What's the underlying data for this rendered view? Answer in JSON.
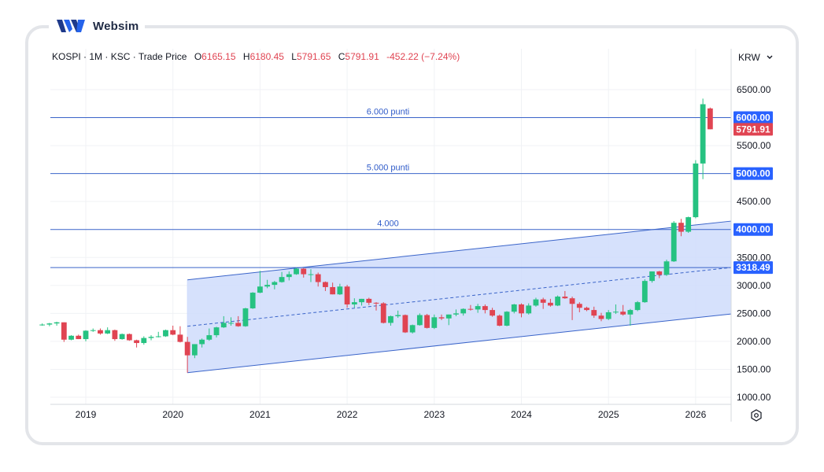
{
  "brand": {
    "name": "Websim",
    "icon": "websim-logo-icon"
  },
  "legend": {
    "symbol": "KOSPI",
    "interval": "1M",
    "exchange": "KSC",
    "price_type": "Trade Price",
    "o_label": "O",
    "o_value": "6165.15",
    "h_label": "H",
    "h_value": "6180.45",
    "l_label": "L",
    "l_value": "5791.65",
    "c_label": "C",
    "c_value": "5791.91",
    "change": "-452.22",
    "change_pct": "(−7.24%)"
  },
  "currency": {
    "label": "KRW",
    "icon": "chevron-down-icon"
  },
  "colors": {
    "up": "#26c281",
    "down": "#e04452",
    "line": "#3a64c9",
    "channel_fill": "#cfdcfb",
    "badge": "#2962ff"
  },
  "chart_data": {
    "type": "candlestick",
    "x_ticks": [
      "2019",
      "2020",
      "2021",
      "2022",
      "2023",
      "2024",
      "2025",
      "2026"
    ],
    "y_ticks": [
      "1000.00",
      "1500.00",
      "2000.00",
      "2500.00",
      "3000.00",
      "3500.00",
      "4500.00",
      "5500.00",
      "6500.00"
    ],
    "ylim": [
      950,
      6650
    ],
    "horizontal_lines": [
      {
        "value": 6000,
        "label": "6.000 punti",
        "badge": "6000.00"
      },
      {
        "value": 5000,
        "label": "5.000 punti",
        "badge": "5000.00"
      },
      {
        "value": 4000,
        "label": "4.000",
        "badge": "4000.00"
      },
      {
        "value": 3318.49,
        "label": "",
        "badge": "3318.49"
      }
    ],
    "last_price_badge": {
      "value": 5791.91,
      "text": "5791.91"
    },
    "channel": {
      "start": "2020-03",
      "end": "2026-06",
      "upper": [
        3100,
        4150
      ],
      "middle": [
        2270,
        3320
      ],
      "lower": [
        1440,
        2490
      ]
    },
    "candles": [
      [
        "2018-07",
        2300,
        2320,
        2280,
        2300
      ],
      [
        "2018-08",
        2300,
        2330,
        2270,
        2320
      ],
      [
        "2018-09",
        2320,
        2350,
        2280,
        2340
      ],
      [
        "2018-10",
        2340,
        2340,
        1990,
        2030
      ],
      [
        "2018-11",
        2030,
        2110,
        2020,
        2100
      ],
      [
        "2018-12",
        2100,
        2120,
        2040,
        2040
      ],
      [
        "2019-01",
        2040,
        2200,
        2000,
        2190
      ],
      [
        "2019-02",
        2190,
        2230,
        2170,
        2200
      ],
      [
        "2019-03",
        2200,
        2230,
        2120,
        2140
      ],
      [
        "2019-04",
        2140,
        2250,
        2130,
        2200
      ],
      [
        "2019-05",
        2200,
        2210,
        2010,
        2040
      ],
      [
        "2019-06",
        2040,
        2140,
        2030,
        2130
      ],
      [
        "2019-07",
        2130,
        2140,
        2010,
        2020
      ],
      [
        "2019-08",
        2020,
        2030,
        1890,
        1970
      ],
      [
        "2019-09",
        1970,
        2090,
        1940,
        2060
      ],
      [
        "2019-10",
        2060,
        2110,
        2020,
        2080
      ],
      [
        "2019-11",
        2080,
        2170,
        2070,
        2090
      ],
      [
        "2019-12",
        2090,
        2210,
        2080,
        2200
      ],
      [
        "2020-01",
        2200,
        2280,
        2110,
        2120
      ],
      [
        "2020-02",
        2120,
        2270,
        1980,
        1990
      ],
      [
        "2020-03",
        1990,
        2080,
        1440,
        1750
      ],
      [
        "2020-04",
        1750,
        1950,
        1700,
        1950
      ],
      [
        "2020-05",
        1950,
        2050,
        1890,
        2030
      ],
      [
        "2020-06",
        2030,
        2230,
        2010,
        2110
      ],
      [
        "2020-07",
        2110,
        2260,
        2070,
        2250
      ],
      [
        "2020-08",
        2250,
        2450,
        2240,
        2330
      ],
      [
        "2020-09",
        2330,
        2430,
        2280,
        2330
      ],
      [
        "2020-10",
        2330,
        2450,
        2260,
        2270
      ],
      [
        "2020-11",
        2270,
        2600,
        2260,
        2590
      ],
      [
        "2020-12",
        2590,
        2880,
        2580,
        2870
      ],
      [
        "2021-01",
        2870,
        3260,
        2860,
        2980
      ],
      [
        "2021-02",
        2980,
        3100,
        2950,
        3010
      ],
      [
        "2021-03",
        3010,
        3080,
        2930,
        3060
      ],
      [
        "2021-04",
        3060,
        3240,
        3050,
        3150
      ],
      [
        "2021-05",
        3150,
        3250,
        3090,
        3200
      ],
      [
        "2021-06",
        3200,
        3320,
        3190,
        3300
      ],
      [
        "2021-07",
        3300,
        3310,
        3140,
        3200
      ],
      [
        "2021-08",
        3200,
        3290,
        3060,
        3200
      ],
      [
        "2021-09",
        3200,
        3230,
        2980,
        3060
      ],
      [
        "2021-10",
        3060,
        3070,
        2900,
        2970
      ],
      [
        "2021-11",
        2970,
        3050,
        2840,
        2840
      ],
      [
        "2021-12",
        2840,
        3030,
        2830,
        2980
      ],
      [
        "2022-01",
        2980,
        3010,
        2600,
        2660
      ],
      [
        "2022-02",
        2660,
        2770,
        2600,
        2700
      ],
      [
        "2022-03",
        2700,
        2760,
        2640,
        2760
      ],
      [
        "2022-04",
        2760,
        2780,
        2650,
        2690
      ],
      [
        "2022-05",
        2690,
        2700,
        2550,
        2680
      ],
      [
        "2022-06",
        2680,
        2700,
        2320,
        2330
      ],
      [
        "2022-07",
        2330,
        2460,
        2280,
        2450
      ],
      [
        "2022-08",
        2450,
        2550,
        2420,
        2470
      ],
      [
        "2022-09",
        2470,
        2480,
        2150,
        2160
      ],
      [
        "2022-10",
        2160,
        2300,
        2140,
        2290
      ],
      [
        "2022-11",
        2290,
        2500,
        2280,
        2470
      ],
      [
        "2022-12",
        2470,
        2490,
        2230,
        2240
      ],
      [
        "2023-01",
        2240,
        2480,
        2220,
        2430
      ],
      [
        "2023-02",
        2430,
        2480,
        2380,
        2410
      ],
      [
        "2023-03",
        2410,
        2480,
        2290,
        2480
      ],
      [
        "2023-04",
        2480,
        2570,
        2450,
        2500
      ],
      [
        "2023-05",
        2500,
        2590,
        2460,
        2580
      ],
      [
        "2023-06",
        2580,
        2650,
        2550,
        2570
      ],
      [
        "2023-07",
        2570,
        2670,
        2510,
        2630
      ],
      [
        "2023-08",
        2630,
        2660,
        2500,
        2560
      ],
      [
        "2023-09",
        2560,
        2600,
        2440,
        2460
      ],
      [
        "2023-10",
        2460,
        2480,
        2270,
        2280
      ],
      [
        "2023-11",
        2280,
        2540,
        2270,
        2530
      ],
      [
        "2023-12",
        2530,
        2670,
        2500,
        2660
      ],
      [
        "2024-01",
        2660,
        2680,
        2430,
        2500
      ],
      [
        "2024-02",
        2500,
        2680,
        2480,
        2640
      ],
      [
        "2024-03",
        2640,
        2780,
        2620,
        2750
      ],
      [
        "2024-04",
        2750,
        2780,
        2580,
        2690
      ],
      [
        "2024-05",
        2690,
        2760,
        2620,
        2640
      ],
      [
        "2024-06",
        2640,
        2820,
        2630,
        2800
      ],
      [
        "2024-07",
        2800,
        2900,
        2760,
        2770
      ],
      [
        "2024-08",
        2770,
        2800,
        2380,
        2670
      ],
      [
        "2024-09",
        2670,
        2700,
        2520,
        2600
      ],
      [
        "2024-10",
        2600,
        2620,
        2540,
        2560
      ],
      [
        "2024-11",
        2560,
        2620,
        2420,
        2460
      ],
      [
        "2024-12",
        2460,
        2510,
        2360,
        2400
      ],
      [
        "2025-01",
        2400,
        2560,
        2380,
        2520
      ],
      [
        "2025-02",
        2520,
        2660,
        2490,
        2530
      ],
      [
        "2025-03",
        2530,
        2650,
        2460,
        2480
      ],
      [
        "2025-04",
        2480,
        2580,
        2280,
        2560
      ],
      [
        "2025-05",
        2560,
        2720,
        2540,
        2700
      ],
      [
        "2025-06",
        2700,
        3110,
        2690,
        3080
      ],
      [
        "2025-07",
        3080,
        3250,
        3050,
        3250
      ],
      [
        "2025-08",
        3250,
        3260,
        3130,
        3190
      ],
      [
        "2025-09",
        3190,
        3460,
        3170,
        3430
      ],
      [
        "2025-10",
        3430,
        4150,
        3420,
        4120
      ],
      [
        "2025-11",
        4120,
        4190,
        3880,
        3960
      ],
      [
        "2025-12",
        3960,
        4230,
        3940,
        4220
      ],
      [
        "2026-01",
        4220,
        5240,
        4200,
        5180
      ],
      [
        "2026-02",
        5180,
        6340,
        4900,
        6240
      ],
      [
        "2026-03",
        6165.15,
        6180.45,
        5791.65,
        5791.91
      ]
    ]
  }
}
